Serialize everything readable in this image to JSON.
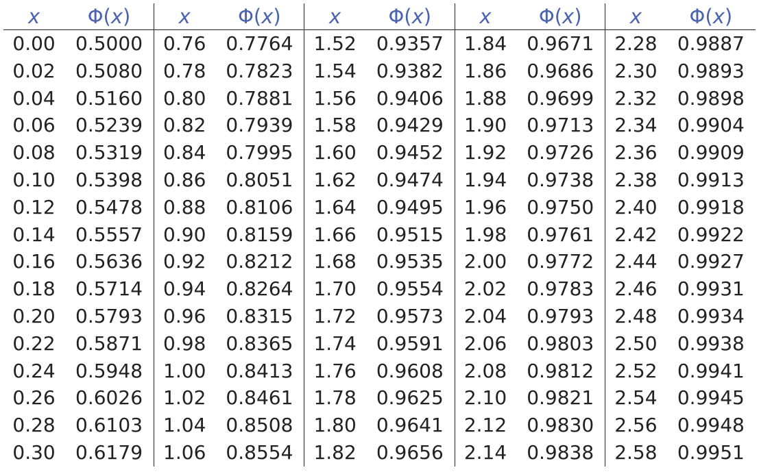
{
  "table": {
    "header": {
      "x_label": "x",
      "phi_label": "Φ",
      "phi_arg_open": "(",
      "phi_arg": "x",
      "phi_arg_close": ")"
    },
    "column_groups": 5,
    "rows": [
      [
        [
          "0.00",
          "0.5000"
        ],
        [
          "0.76",
          "0.7764"
        ],
        [
          "1.52",
          "0.9357"
        ],
        [
          "1.84",
          "0.9671"
        ],
        [
          "2.28",
          "0.9887"
        ]
      ],
      [
        [
          "0.02",
          "0.5080"
        ],
        [
          "0.78",
          "0.7823"
        ],
        [
          "1.54",
          "0.9382"
        ],
        [
          "1.86",
          "0.9686"
        ],
        [
          "2.30",
          "0.9893"
        ]
      ],
      [
        [
          "0.04",
          "0.5160"
        ],
        [
          "0.80",
          "0.7881"
        ],
        [
          "1.56",
          "0.9406"
        ],
        [
          "1.88",
          "0.9699"
        ],
        [
          "2.32",
          "0.9898"
        ]
      ],
      [
        [
          "0.06",
          "0.5239"
        ],
        [
          "0.82",
          "0.7939"
        ],
        [
          "1.58",
          "0.9429"
        ],
        [
          "1.90",
          "0.9713"
        ],
        [
          "2.34",
          "0.9904"
        ]
      ],
      [
        [
          "0.08",
          "0.5319"
        ],
        [
          "0.84",
          "0.7995"
        ],
        [
          "1.60",
          "0.9452"
        ],
        [
          "1.92",
          "0.9726"
        ],
        [
          "2.36",
          "0.9909"
        ]
      ],
      [
        [
          "0.10",
          "0.5398"
        ],
        [
          "0.86",
          "0.8051"
        ],
        [
          "1.62",
          "0.9474"
        ],
        [
          "1.94",
          "0.9738"
        ],
        [
          "2.38",
          "0.9913"
        ]
      ],
      [
        [
          "0.12",
          "0.5478"
        ],
        [
          "0.88",
          "0.8106"
        ],
        [
          "1.64",
          "0.9495"
        ],
        [
          "1.96",
          "0.9750"
        ],
        [
          "2.40",
          "0.9918"
        ]
      ],
      [
        [
          "0.14",
          "0.5557"
        ],
        [
          "0.90",
          "0.8159"
        ],
        [
          "1.66",
          "0.9515"
        ],
        [
          "1.98",
          "0.9761"
        ],
        [
          "2.42",
          "0.9922"
        ]
      ],
      [
        [
          "0.16",
          "0.5636"
        ],
        [
          "0.92",
          "0.8212"
        ],
        [
          "1.68",
          "0.9535"
        ],
        [
          "2.00",
          "0.9772"
        ],
        [
          "2.44",
          "0.9927"
        ]
      ],
      [
        [
          "0.18",
          "0.5714"
        ],
        [
          "0.94",
          "0.8264"
        ],
        [
          "1.70",
          "0.9554"
        ],
        [
          "2.02",
          "0.9783"
        ],
        [
          "2.46",
          "0.9931"
        ]
      ],
      [
        [
          "0.20",
          "0.5793"
        ],
        [
          "0.96",
          "0.8315"
        ],
        [
          "1.72",
          "0.9573"
        ],
        [
          "2.04",
          "0.9793"
        ],
        [
          "2.48",
          "0.9934"
        ]
      ],
      [
        [
          "0.22",
          "0.5871"
        ],
        [
          "0.98",
          "0.8365"
        ],
        [
          "1.74",
          "0.9591"
        ],
        [
          "2.06",
          "0.9803"
        ],
        [
          "2.50",
          "0.9938"
        ]
      ],
      [
        [
          "0.24",
          "0.5948"
        ],
        [
          "1.00",
          "0.8413"
        ],
        [
          "1.76",
          "0.9608"
        ],
        [
          "2.08",
          "0.9812"
        ],
        [
          "2.52",
          "0.9941"
        ]
      ],
      [
        [
          "0.26",
          "0.6026"
        ],
        [
          "1.02",
          "0.8461"
        ],
        [
          "1.78",
          "0.9625"
        ],
        [
          "2.10",
          "0.9821"
        ],
        [
          "2.54",
          "0.9945"
        ]
      ],
      [
        [
          "0.28",
          "0.6103"
        ],
        [
          "1.04",
          "0.8508"
        ],
        [
          "1.80",
          "0.9641"
        ],
        [
          "2.12",
          "0.9830"
        ],
        [
          "2.56",
          "0.9948"
        ]
      ],
      [
        [
          "0.30",
          "0.6179"
        ],
        [
          "1.06",
          "0.8554"
        ],
        [
          "1.82",
          "0.9656"
        ],
        [
          "2.14",
          "0.9838"
        ],
        [
          "2.58",
          "0.9951"
        ]
      ]
    ],
    "colors": {
      "header_text": "#4a63b0",
      "body_text": "#222222",
      "rules": "#222222",
      "background": "#ffffff"
    }
  }
}
